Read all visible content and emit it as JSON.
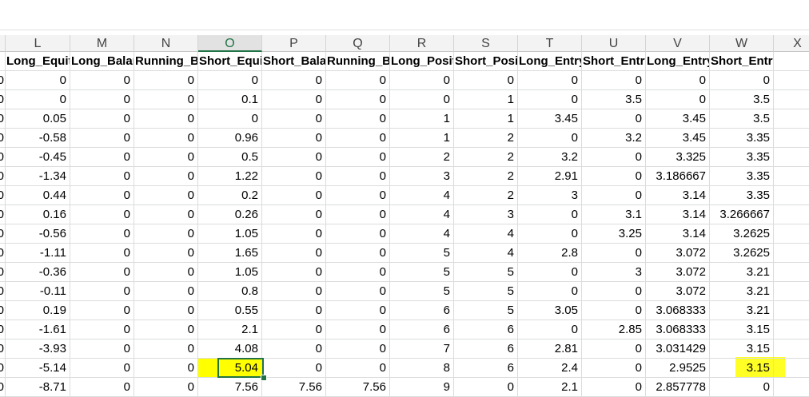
{
  "columns": [
    {
      "letter": "L",
      "header": "Long_Equity"
    },
    {
      "letter": "M",
      "header": "Long_Balance"
    },
    {
      "letter": "N",
      "header": "Running_Balance"
    },
    {
      "letter": "O",
      "header": "Short_Equity"
    },
    {
      "letter": "P",
      "header": "Short_Balance"
    },
    {
      "letter": "Q",
      "header": "Running_Balance"
    },
    {
      "letter": "R",
      "header": "Long_Position"
    },
    {
      "letter": "S",
      "header": "Short_Position"
    },
    {
      "letter": "T",
      "header": "Long_Entry_Price"
    },
    {
      "letter": "U",
      "header": "Short_Entry_Price"
    },
    {
      "letter": "V",
      "header": "Long_Entry_Price"
    },
    {
      "letter": "W",
      "header": "Short_Entry_Price"
    },
    {
      "letter": "X",
      "header": ""
    }
  ],
  "left_partial_values": [
    "0",
    "0",
    "0",
    "0",
    "0",
    "0",
    "0",
    "0",
    "0",
    "0",
    "0",
    "0",
    "0",
    "0",
    "0",
    "0",
    "0"
  ],
  "rows": [
    [
      "0",
      "0",
      "0",
      "0",
      "0",
      "0",
      "0",
      "0",
      "0",
      "0",
      "0",
      "0"
    ],
    [
      "0",
      "0",
      "0",
      "0.1",
      "0",
      "0",
      "0",
      "1",
      "0",
      "3.5",
      "0",
      "3.5"
    ],
    [
      "0.05",
      "0",
      "0",
      "0",
      "0",
      "0",
      "1",
      "1",
      "3.45",
      "0",
      "3.45",
      "3.5"
    ],
    [
      "-0.58",
      "0",
      "0",
      "0.96",
      "0",
      "0",
      "1",
      "2",
      "0",
      "3.2",
      "3.45",
      "3.35"
    ],
    [
      "-0.45",
      "0",
      "0",
      "0.5",
      "0",
      "0",
      "2",
      "2",
      "3.2",
      "0",
      "3.325",
      "3.35"
    ],
    [
      "-1.34",
      "0",
      "0",
      "1.22",
      "0",
      "0",
      "3",
      "2",
      "2.91",
      "0",
      "3.186667",
      "3.35"
    ],
    [
      "0.44",
      "0",
      "0",
      "0.2",
      "0",
      "0",
      "4",
      "2",
      "3",
      "0",
      "3.14",
      "3.35"
    ],
    [
      "0.16",
      "0",
      "0",
      "0.26",
      "0",
      "0",
      "4",
      "3",
      "0",
      "3.1",
      "3.14",
      "3.266667"
    ],
    [
      "-0.56",
      "0",
      "0",
      "1.05",
      "0",
      "0",
      "4",
      "4",
      "0",
      "3.25",
      "3.14",
      "3.2625"
    ],
    [
      "-1.11",
      "0",
      "0",
      "1.65",
      "0",
      "0",
      "5",
      "4",
      "2.8",
      "0",
      "3.072",
      "3.2625"
    ],
    [
      "-0.36",
      "0",
      "0",
      "1.05",
      "0",
      "0",
      "5",
      "5",
      "0",
      "3",
      "3.072",
      "3.21"
    ],
    [
      "-0.11",
      "0",
      "0",
      "0.8",
      "0",
      "0",
      "5",
      "5",
      "0",
      "0",
      "3.072",
      "3.21"
    ],
    [
      "0.19",
      "0",
      "0",
      "0.55",
      "0",
      "0",
      "6",
      "5",
      "3.05",
      "0",
      "3.068333",
      "3.21"
    ],
    [
      "-1.61",
      "0",
      "0",
      "2.1",
      "0",
      "0",
      "6",
      "6",
      "0",
      "2.85",
      "3.068333",
      "3.15"
    ],
    [
      "-3.93",
      "0",
      "0",
      "4.08",
      "0",
      "0",
      "7",
      "6",
      "2.81",
      "0",
      "3.031429",
      "3.15"
    ],
    [
      "-5.14",
      "0",
      "0",
      "5.04",
      "0",
      "0",
      "8",
      "6",
      "2.4",
      "0",
      "2.9525",
      "3.15"
    ],
    [
      "-8.71",
      "0",
      "0",
      "7.56",
      "7.56",
      "7.56",
      "9",
      "0",
      "2.1",
      "0",
      "2.857778",
      "0"
    ]
  ],
  "selected_cell": {
    "column": "O",
    "row_index": 15
  },
  "highlight_color": "#ffff00",
  "accent_color": "#217346"
}
